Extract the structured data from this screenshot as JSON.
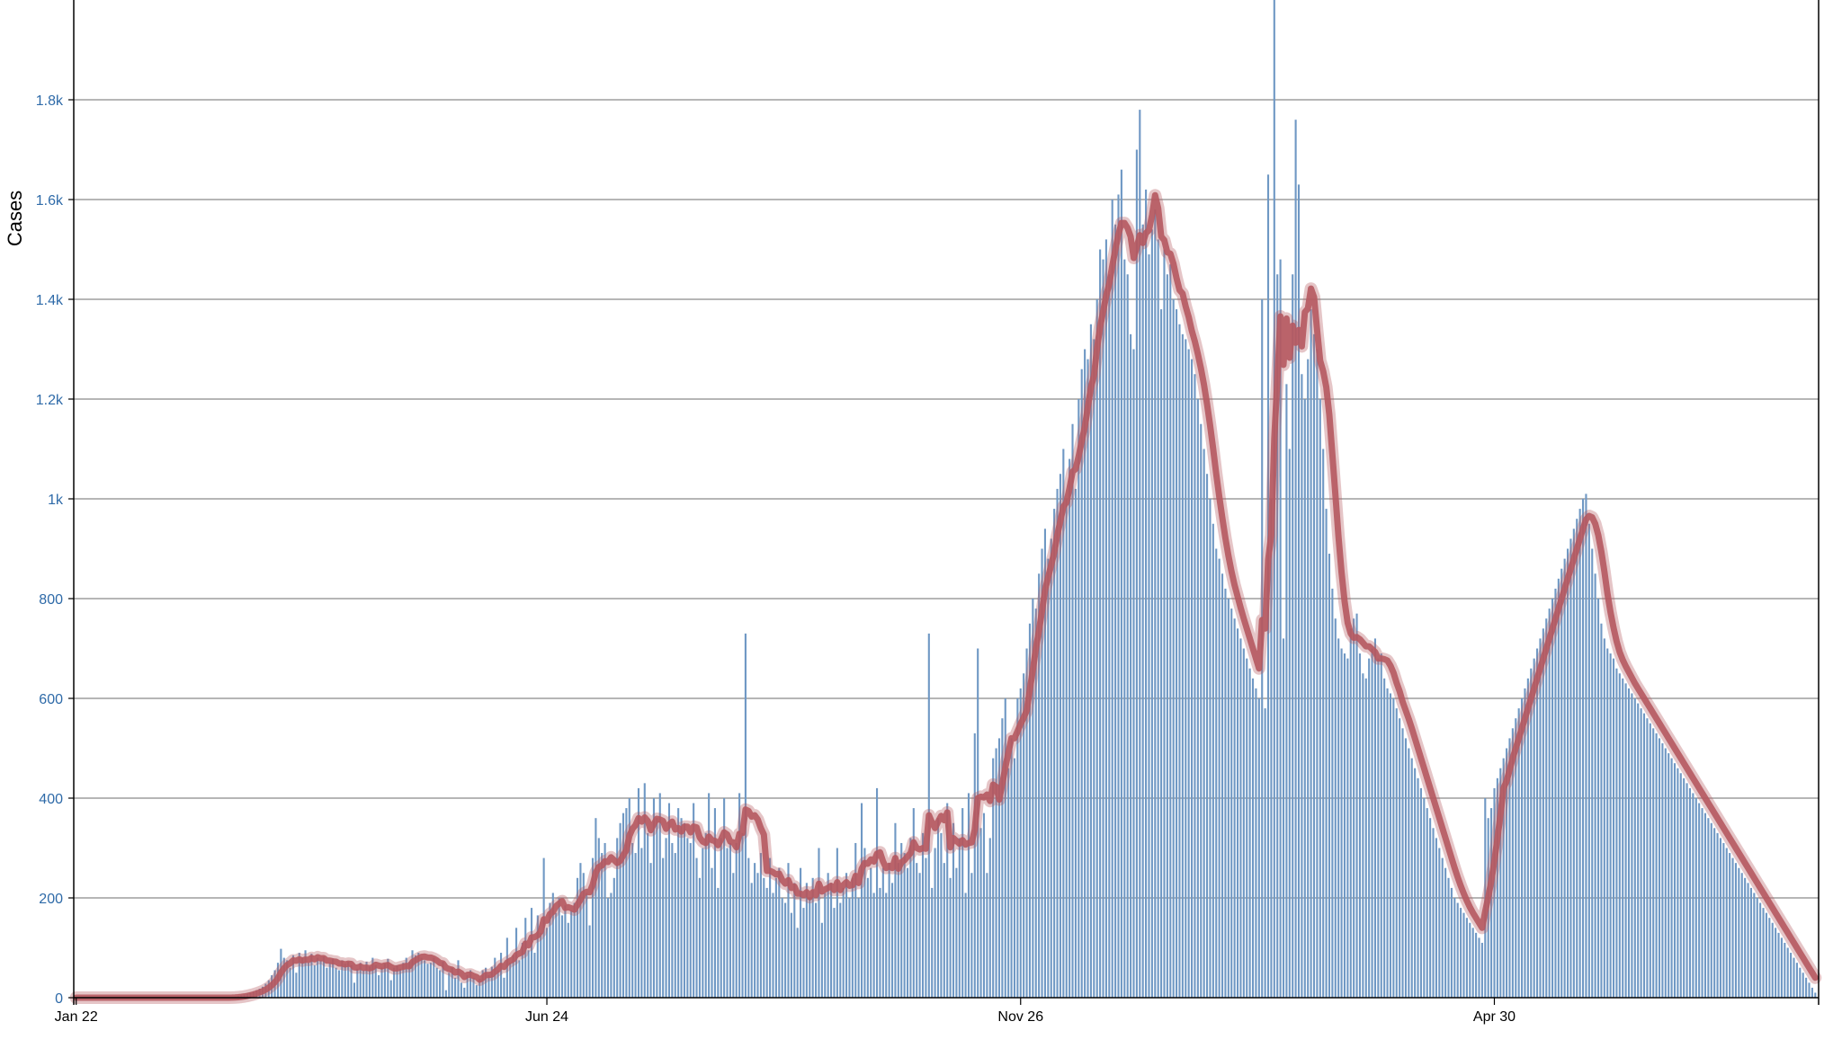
{
  "chart_data": {
    "type": "bar",
    "ylabel": "Cases",
    "ylim": [
      0,
      2000
    ],
    "y_ticks": [
      {
        "value": 0,
        "label": "0"
      },
      {
        "value": 200,
        "label": "200"
      },
      {
        "value": 400,
        "label": "400"
      },
      {
        "value": 600,
        "label": "600"
      },
      {
        "value": 800,
        "label": "800"
      },
      {
        "value": 1000,
        "label": "1k"
      },
      {
        "value": 1200,
        "label": "1.2k"
      },
      {
        "value": 1400,
        "label": "1.4k"
      },
      {
        "value": 1600,
        "label": "1.6k"
      },
      {
        "value": 1800,
        "label": "1.8k"
      }
    ],
    "x_ticks": [
      {
        "index": 0,
        "label": "Jan 22"
      },
      {
        "index": 154,
        "label": "Jun 24"
      },
      {
        "index": 309,
        "label": "Nov 26"
      },
      {
        "index": 464,
        "label": "Apr 30"
      }
    ],
    "grid": true,
    "legend": "none",
    "colors": {
      "bars": "#6f98c4",
      "average_line": "#b5585f",
      "tick_y": "#2e6aa8"
    },
    "series": [
      {
        "type": "bar",
        "values": [
          0,
          0,
          0,
          0,
          0,
          0,
          0,
          0,
          0,
          0,
          0,
          0,
          0,
          0,
          0,
          0,
          0,
          0,
          0,
          0,
          0,
          0,
          0,
          0,
          0,
          0,
          0,
          0,
          0,
          0,
          0,
          0,
          0,
          0,
          0,
          0,
          0,
          0,
          0,
          0,
          0,
          0,
          0,
          0,
          0,
          0,
          0,
          0,
          0,
          0,
          0,
          1,
          2,
          3,
          5,
          6,
          8,
          10,
          12,
          15,
          18,
          22,
          28,
          35,
          45,
          55,
          70,
          98,
          80,
          75,
          60,
          85,
          50,
          90,
          80,
          95,
          70,
          88,
          65,
          80,
          75,
          82,
          60,
          70,
          78,
          60,
          55,
          75,
          68,
          72,
          65,
          30,
          58,
          70,
          55,
          72,
          62,
          80,
          65,
          45,
          60,
          68,
          78,
          35,
          60,
          65,
          58,
          70,
          80,
          72,
          95,
          85,
          90,
          80,
          75,
          68,
          70,
          80,
          60,
          55,
          72,
          15,
          50,
          60,
          40,
          75,
          30,
          20,
          45,
          55,
          40,
          25,
          38,
          55,
          60,
          45,
          62,
          80,
          55,
          90,
          40,
          120,
          70,
          85,
          140,
          75,
          110,
          160,
          95,
          180,
          90,
          165,
          130,
          280,
          140,
          190,
          210,
          170,
          200,
          165,
          185,
          150,
          175,
          190,
          240,
          270,
          250,
          210,
          145,
          280,
          360,
          320,
          290,
          310,
          200,
          210,
          240,
          320,
          350,
          370,
          380,
          400,
          310,
          290,
          420,
          300,
          430,
          330,
          270,
          400,
          360,
          410,
          280,
          320,
          390,
          310,
          290,
          380,
          360,
          350,
          320,
          310,
          390,
          280,
          240,
          300,
          330,
          410,
          260,
          380,
          220,
          320,
          400,
          300,
          310,
          250,
          310,
          410,
          330,
          730,
          280,
          230,
          270,
          250,
          290,
          240,
          220,
          280,
          210,
          240,
          260,
          200,
          190,
          270,
          170,
          230,
          140,
          260,
          180,
          230,
          200,
          240,
          190,
          300,
          150,
          210,
          250,
          230,
          180,
          300,
          190,
          220,
          250,
          200,
          240,
          310,
          200,
          390,
          300,
          240,
          260,
          210,
          420,
          220,
          260,
          210,
          270,
          230,
          350,
          270,
          310,
          290,
          260,
          320,
          380,
          270,
          250,
          330,
          280,
          730,
          220,
          300,
          360,
          330,
          270,
          390,
          240,
          350,
          260,
          320,
          380,
          210,
          410,
          250,
          530,
          700,
          340,
          370,
          250,
          320,
          480,
          500,
          520,
          560,
          600,
          460,
          520,
          480,
          600,
          620,
          650,
          700,
          750,
          800,
          780,
          850,
          900,
          940,
          880,
          920,
          980,
          1020,
          1050,
          1100,
          1000,
          1080,
          1150,
          1020,
          1200,
          1260,
          1300,
          1280,
          1350,
          1320,
          1400,
          1500,
          1480,
          1520,
          1450,
          1600,
          1550,
          1610,
          1660,
          1480,
          1450,
          1330,
          1300,
          1700,
          1780,
          1550,
          1620,
          1490,
          1540,
          1580,
          1520,
          1380,
          1500,
          1450,
          1470,
          1400,
          1380,
          1350,
          1330,
          1320,
          1300,
          1280,
          1250,
          1200,
          1150,
          1100,
          1050,
          1000,
          950,
          900,
          880,
          850,
          820,
          800,
          780,
          760,
          740,
          720,
          700,
          680,
          660,
          640,
          620,
          600,
          1400,
          580,
          1650,
          1000,
          2000,
          1450,
          1480,
          720,
          1230,
          1100,
          1450,
          1760,
          1630,
          1250,
          1200,
          1280,
          1380,
          1330,
          1300,
          1200,
          1100,
          980,
          890,
          820,
          760,
          720,
          700,
          690,
          680,
          740,
          760,
          770,
          690,
          650,
          640,
          680,
          700,
          720,
          680,
          690,
          640,
          620,
          610,
          600,
          580,
          560,
          540,
          520,
          500,
          480,
          460,
          440,
          420,
          400,
          380,
          360,
          340,
          320,
          300,
          280,
          260,
          240,
          220,
          200,
          190,
          180,
          170,
          160,
          150,
          140,
          130,
          120,
          110,
          400,
          360,
          380,
          420,
          440,
          460,
          480,
          500,
          520,
          540,
          560,
          580,
          600,
          620,
          640,
          660,
          680,
          700,
          720,
          740,
          760,
          780,
          800,
          820,
          840,
          860,
          880,
          900,
          920,
          940,
          960,
          980,
          1000,
          1010,
          950,
          900,
          850,
          800,
          750,
          720,
          700,
          690,
          680,
          660,
          650,
          640,
          630,
          620,
          610,
          600,
          590,
          580,
          570,
          560,
          550,
          540,
          530,
          520,
          510,
          500,
          490,
          480,
          470,
          460,
          450,
          440,
          430,
          420,
          410,
          400,
          390,
          380,
          370,
          360,
          350,
          340,
          330,
          320,
          310,
          300,
          290,
          280,
          270,
          260,
          250,
          240,
          230,
          220,
          210,
          200,
          190,
          180,
          170,
          160,
          150,
          140,
          130,
          120,
          110,
          100,
          90,
          80,
          70,
          60,
          50,
          40,
          30,
          20,
          10
        ]
      },
      {
        "type": "line",
        "name_hidden": true,
        "values": []
      }
    ]
  }
}
